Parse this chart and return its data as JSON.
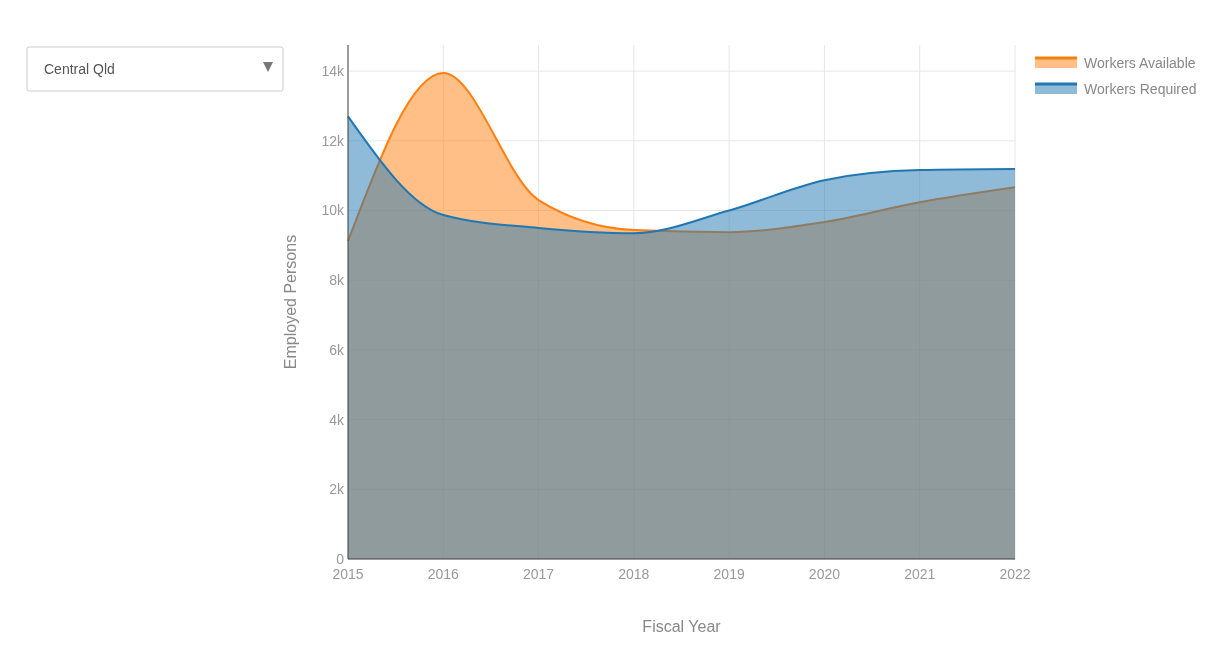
{
  "chart_data": {
    "type": "area",
    "subtitle": "Central Qld",
    "xlabel": "Fiscal Year",
    "ylabel": "Employed Persons",
    "x": [
      2015,
      2016,
      2017,
      2018,
      2019,
      2020,
      2021,
      2022
    ],
    "series": [
      {
        "name": "Workers Available",
        "color": "#ff7f0e",
        "values": [
          9120,
          13950,
          10300,
          9440,
          9380,
          9670,
          10240,
          10670
        ]
      },
      {
        "name": "Workers Required",
        "color": "#1f77b4",
        "values": [
          12700,
          9870,
          9500,
          9350,
          10000,
          10870,
          11160,
          11190
        ]
      }
    ],
    "xlim": [
      2015,
      2022
    ],
    "xticks": [
      2015,
      2016,
      2017,
      2018,
      2019,
      2020,
      2021,
      2022
    ],
    "ylim": [
      0,
      14750
    ],
    "yticks": [
      {
        "value": 0,
        "label": "0"
      },
      {
        "value": 2000,
        "label": "2k"
      },
      {
        "value": 4000,
        "label": "4k"
      },
      {
        "value": 6000,
        "label": "6k"
      },
      {
        "value": 8000,
        "label": "8k"
      },
      {
        "value": 10000,
        "label": "10k"
      },
      {
        "value": 12000,
        "label": "12k"
      },
      {
        "value": 14000,
        "label": "14k"
      }
    ],
    "grid": true,
    "legend": "top right"
  }
}
